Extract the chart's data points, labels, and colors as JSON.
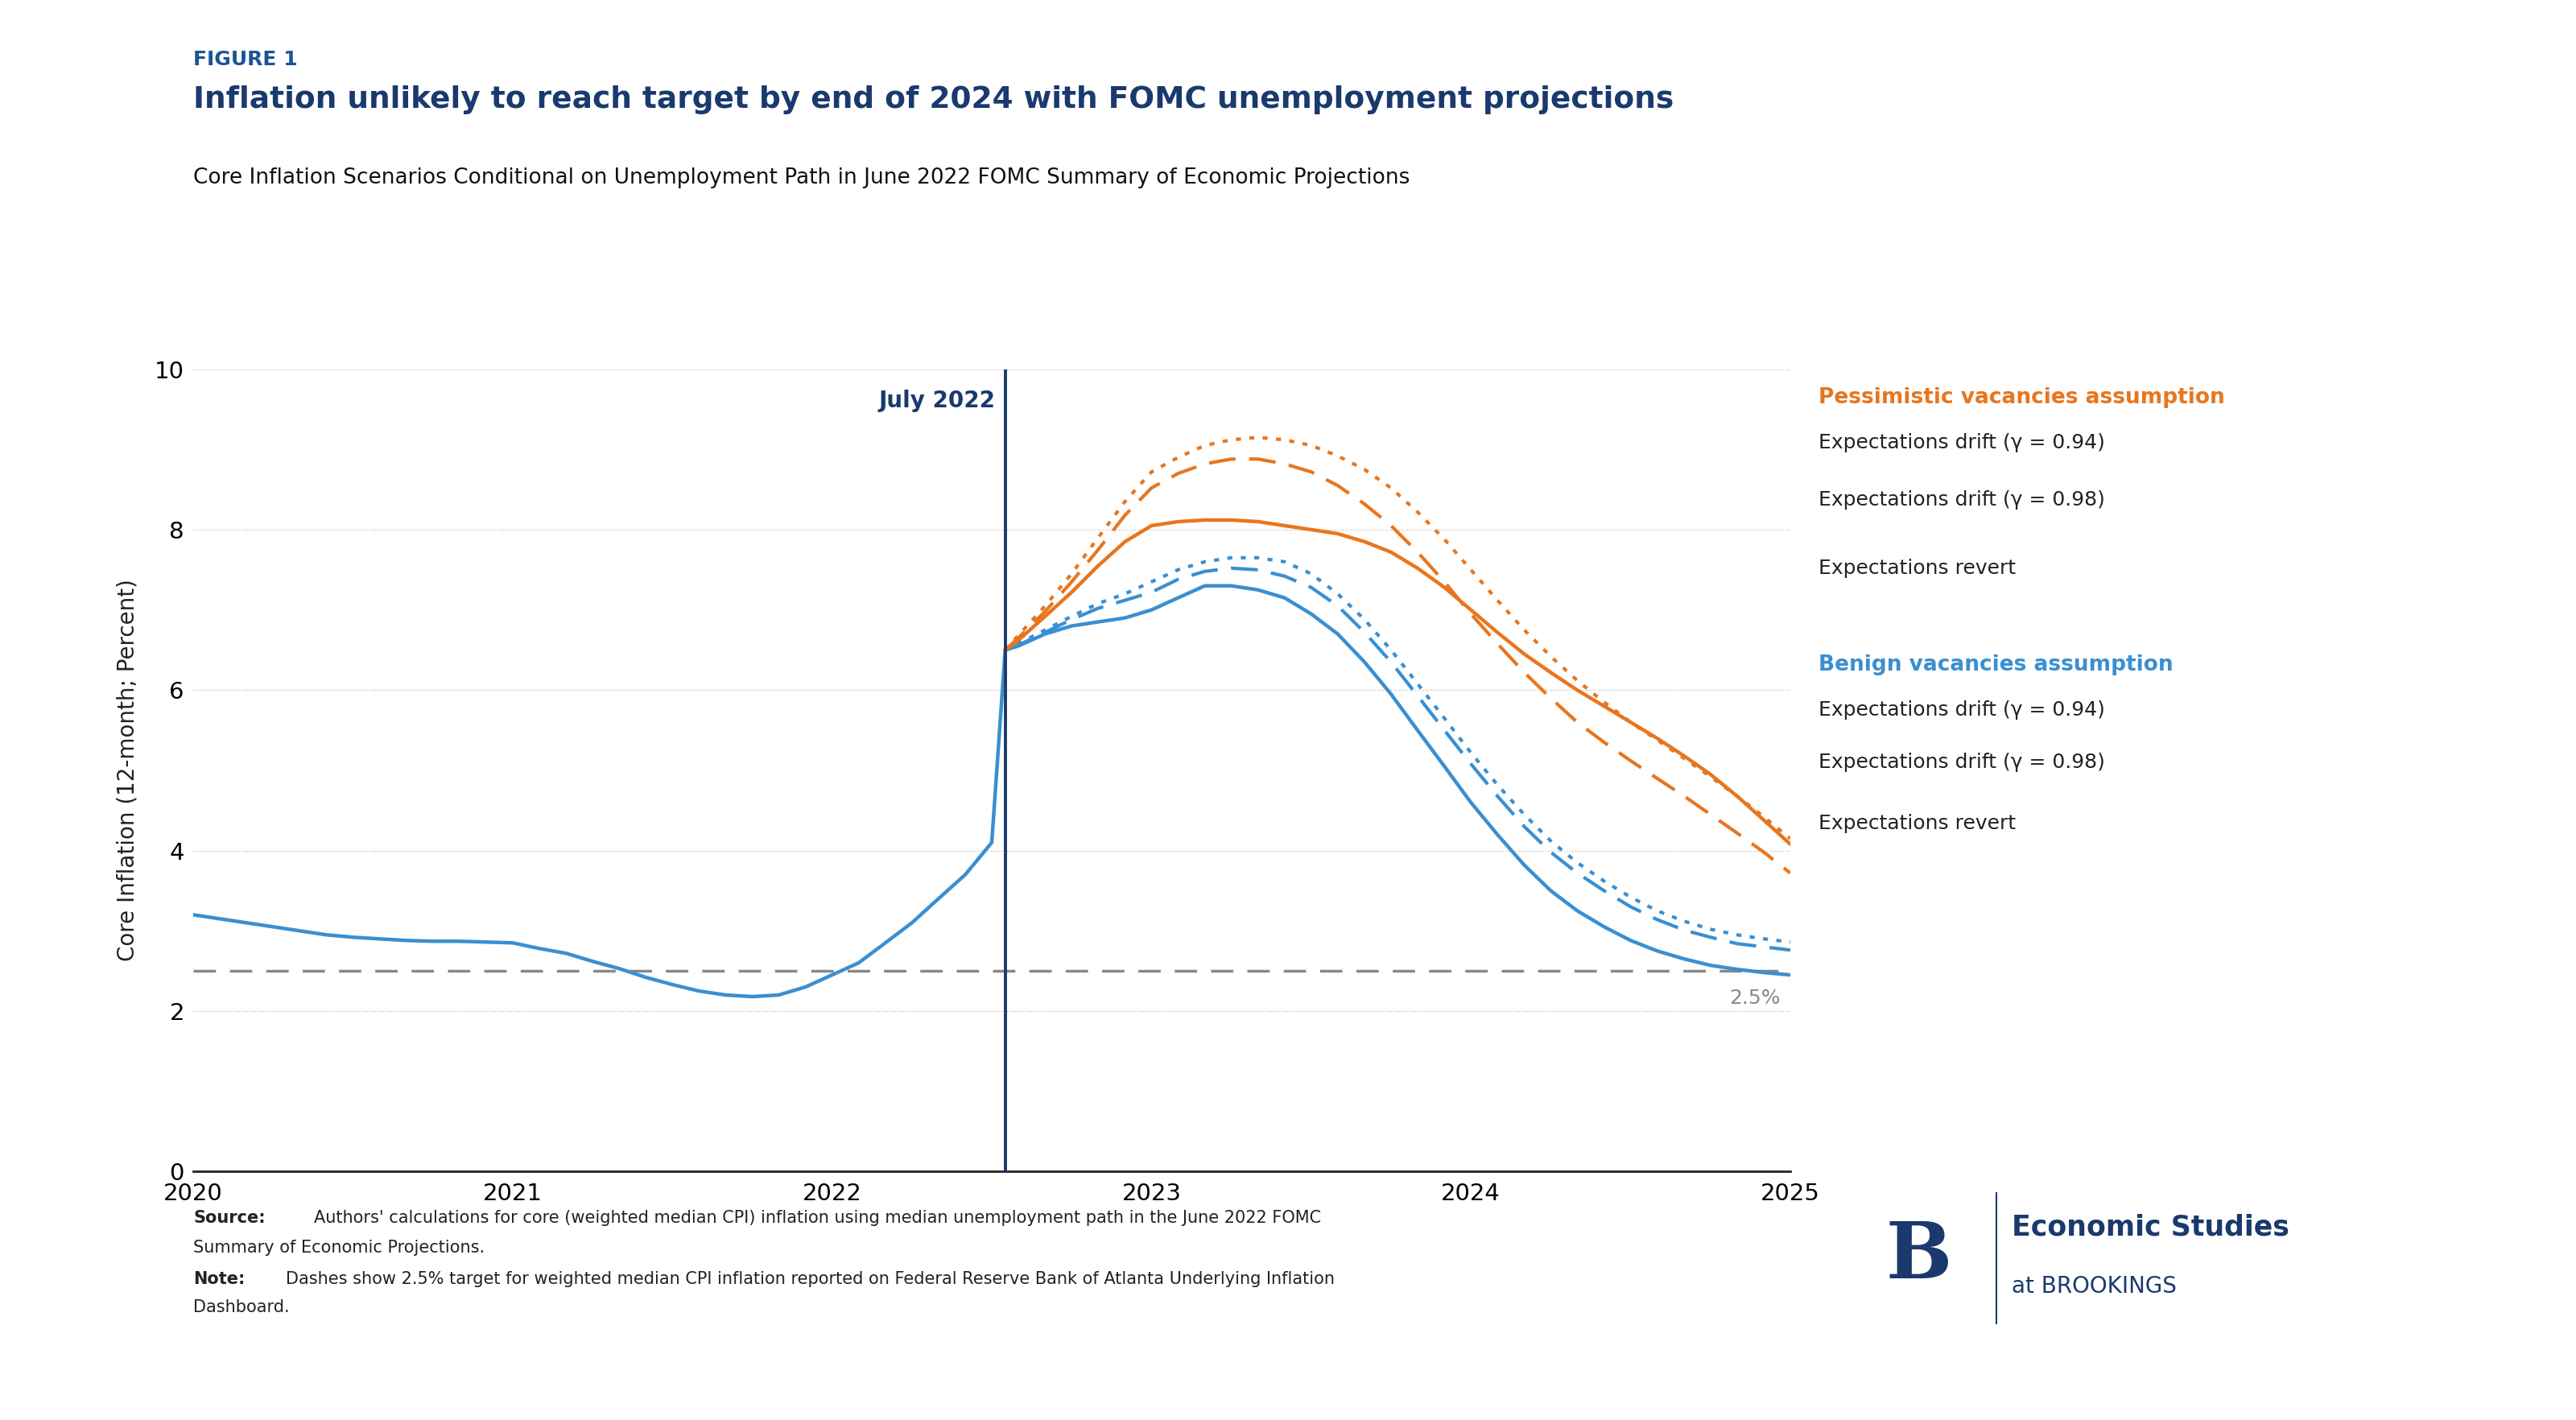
{
  "figure_label": "FIGURE 1",
  "title": "Inflation unlikely to reach target by end of 2024 with FOMC unemployment projections",
  "subtitle": "Core Inflation Scenarios Conditional on Unemployment Path in June 2022 FOMC Summary of Economic Projections",
  "ylabel": "Core Inflation (12-month; Percent)",
  "xlim": [
    2020.0,
    2025.0
  ],
  "ylim": [
    0,
    10
  ],
  "yticks": [
    0,
    2,
    4,
    6,
    8,
    10
  ],
  "xticks": [
    2020,
    2021,
    2022,
    2023,
    2024,
    2025
  ],
  "vline_x": 2022.542,
  "vline_label": "July 2022",
  "target_line_y": 2.5,
  "target_label": "2.5%",
  "background_color": "#ffffff",
  "plot_bg_color": "#ffffff",
  "orange_color": "#e8761e",
  "blue_color": "#3a8fd1",
  "gray_color": "#888888",
  "dark_blue": "#1a3a6e",
  "source_text_bold": "Source:",
  "source_text_rest": " Authors' calculations for core (weighted median CPI) inflation using median unemployment path in the June 2022 FOMC\nSummary of Economic Projections.",
  "note_text_bold": "Note:",
  "note_text_rest": " Dashes show 2.5% target for weighted median CPI inflation reported on Federal Reserve Bank of Atlanta Underlying Inflation\nDashboard.",
  "blue_solid_x": [
    2020.0,
    2020.083,
    2020.167,
    2020.25,
    2020.333,
    2020.417,
    2020.5,
    2020.583,
    2020.667,
    2020.75,
    2020.833,
    2020.917,
    2021.0,
    2021.083,
    2021.167,
    2021.25,
    2021.333,
    2021.417,
    2021.5,
    2021.583,
    2021.667,
    2021.75,
    2021.833,
    2021.917,
    2022.0,
    2022.083,
    2022.167,
    2022.25,
    2022.333,
    2022.417,
    2022.5,
    2022.542
  ],
  "blue_solid_y": [
    3.2,
    3.15,
    3.1,
    3.05,
    3.0,
    2.95,
    2.92,
    2.9,
    2.88,
    2.87,
    2.87,
    2.86,
    2.85,
    2.78,
    2.72,
    2.62,
    2.53,
    2.42,
    2.33,
    2.25,
    2.2,
    2.18,
    2.2,
    2.3,
    2.45,
    2.6,
    2.85,
    3.1,
    3.4,
    3.7,
    4.1,
    6.5
  ],
  "blue_revert_x": [
    2022.542,
    2022.583,
    2022.667,
    2022.75,
    2022.833,
    2022.917,
    2023.0,
    2023.083,
    2023.167,
    2023.25,
    2023.333,
    2023.417,
    2023.5,
    2023.583,
    2023.667,
    2023.75,
    2023.833,
    2023.917,
    2024.0,
    2024.083,
    2024.167,
    2024.25,
    2024.333,
    2024.417,
    2024.5,
    2024.583,
    2024.667,
    2024.75,
    2024.833,
    2024.917,
    2025.0
  ],
  "blue_revert_y": [
    6.5,
    6.55,
    6.7,
    6.8,
    6.85,
    6.9,
    7.0,
    7.15,
    7.3,
    7.3,
    7.25,
    7.15,
    6.95,
    6.7,
    6.35,
    5.95,
    5.5,
    5.05,
    4.6,
    4.2,
    3.82,
    3.5,
    3.25,
    3.05,
    2.88,
    2.75,
    2.65,
    2.57,
    2.52,
    2.48,
    2.45
  ],
  "blue_drift_094_x": [
    2022.542,
    2022.583,
    2022.667,
    2022.75,
    2022.833,
    2022.917,
    2023.0,
    2023.083,
    2023.167,
    2023.25,
    2023.333,
    2023.417,
    2023.5,
    2023.583,
    2023.667,
    2023.75,
    2023.833,
    2023.917,
    2024.0,
    2024.083,
    2024.167,
    2024.25,
    2024.333,
    2024.417,
    2024.5,
    2024.583,
    2024.667,
    2024.75,
    2024.833,
    2024.917,
    2025.0
  ],
  "blue_drift_094_y": [
    6.5,
    6.58,
    6.75,
    6.92,
    7.08,
    7.2,
    7.35,
    7.5,
    7.6,
    7.65,
    7.65,
    7.6,
    7.45,
    7.2,
    6.88,
    6.5,
    6.08,
    5.65,
    5.22,
    4.82,
    4.45,
    4.12,
    3.85,
    3.62,
    3.42,
    3.25,
    3.12,
    3.02,
    2.95,
    2.9,
    2.86
  ],
  "blue_drift_098_x": [
    2022.542,
    2022.583,
    2022.667,
    2022.75,
    2022.833,
    2022.917,
    2023.0,
    2023.083,
    2023.167,
    2023.25,
    2023.333,
    2023.417,
    2023.5,
    2023.583,
    2023.667,
    2023.75,
    2023.833,
    2023.917,
    2024.0,
    2024.083,
    2024.167,
    2024.25,
    2024.333,
    2024.417,
    2024.5,
    2024.583,
    2024.667,
    2024.75,
    2024.833,
    2024.917,
    2025.0
  ],
  "blue_drift_098_y": [
    6.5,
    6.56,
    6.72,
    6.88,
    7.02,
    7.12,
    7.22,
    7.38,
    7.48,
    7.52,
    7.5,
    7.42,
    7.28,
    7.05,
    6.72,
    6.35,
    5.93,
    5.5,
    5.08,
    4.68,
    4.3,
    3.98,
    3.72,
    3.5,
    3.3,
    3.14,
    3.01,
    2.92,
    2.84,
    2.8,
    2.76
  ],
  "orange_revert_x": [
    2022.542,
    2022.583,
    2022.667,
    2022.75,
    2022.833,
    2022.917,
    2023.0,
    2023.083,
    2023.167,
    2023.25,
    2023.333,
    2023.417,
    2023.5,
    2023.583,
    2023.667,
    2023.75,
    2023.833,
    2023.917,
    2024.0,
    2024.083,
    2024.167,
    2024.25,
    2024.333,
    2024.417,
    2024.5,
    2024.583,
    2024.667,
    2024.75,
    2024.833,
    2024.917,
    2025.0
  ],
  "orange_revert_y": [
    6.5,
    6.62,
    6.92,
    7.22,
    7.55,
    7.85,
    8.05,
    8.1,
    8.12,
    8.12,
    8.1,
    8.05,
    8.0,
    7.95,
    7.85,
    7.72,
    7.52,
    7.28,
    7.0,
    6.72,
    6.45,
    6.22,
    6.0,
    5.8,
    5.6,
    5.4,
    5.18,
    4.95,
    4.68,
    4.38,
    4.08
  ],
  "orange_drift_094_x": [
    2022.542,
    2022.583,
    2022.667,
    2022.75,
    2022.833,
    2022.917,
    2023.0,
    2023.083,
    2023.167,
    2023.25,
    2023.333,
    2023.417,
    2023.5,
    2023.583,
    2023.667,
    2023.75,
    2023.833,
    2023.917,
    2024.0,
    2024.083,
    2024.167,
    2024.25,
    2024.333,
    2024.417,
    2024.5,
    2024.583,
    2024.667,
    2024.75,
    2024.833,
    2024.917,
    2025.0
  ],
  "orange_drift_094_y": [
    6.5,
    6.68,
    7.05,
    7.45,
    7.9,
    8.35,
    8.72,
    8.9,
    9.05,
    9.12,
    9.15,
    9.12,
    9.05,
    8.92,
    8.75,
    8.52,
    8.22,
    7.88,
    7.5,
    7.12,
    6.75,
    6.42,
    6.12,
    5.85,
    5.6,
    5.38,
    5.15,
    4.92,
    4.68,
    4.42,
    4.15
  ],
  "orange_drift_098_x": [
    2022.542,
    2022.583,
    2022.667,
    2022.75,
    2022.833,
    2022.917,
    2023.0,
    2023.083,
    2023.167,
    2023.25,
    2023.333,
    2023.417,
    2023.5,
    2023.583,
    2023.667,
    2023.75,
    2023.833,
    2023.917,
    2024.0,
    2024.083,
    2024.167,
    2024.25,
    2024.333,
    2024.417,
    2024.5,
    2024.583,
    2024.667,
    2024.75,
    2024.833,
    2024.917,
    2025.0
  ],
  "orange_drift_098_y": [
    6.5,
    6.65,
    6.98,
    7.35,
    7.75,
    8.18,
    8.52,
    8.7,
    8.82,
    8.88,
    8.88,
    8.82,
    8.72,
    8.55,
    8.32,
    8.05,
    7.72,
    7.35,
    6.95,
    6.58,
    6.22,
    5.9,
    5.6,
    5.35,
    5.12,
    4.9,
    4.68,
    4.45,
    4.22,
    3.98,
    3.72
  ]
}
